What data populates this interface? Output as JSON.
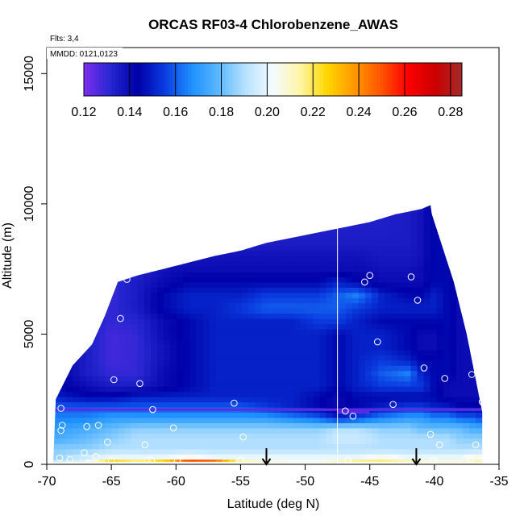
{
  "chart_data": {
    "type": "heatmap",
    "title": "ORCAS RF03-4 Chlorobenzene_AWAS",
    "xlabel": "Latitude (deg N)",
    "ylabel": "Altitude (m)",
    "xlim": [
      -70,
      -35
    ],
    "ylim": [
      0,
      16000
    ],
    "x_ticks": [
      -70,
      -65,
      -60,
      -55,
      -50,
      -45,
      -40,
      -35
    ],
    "x_tick_labels": [
      "-70",
      "-65",
      "-60",
      "-55",
      "-50",
      "-45",
      "-40",
      "-35"
    ],
    "y_ticks": [
      0,
      5000,
      10000,
      15000
    ],
    "y_tick_labels": [
      "0",
      "5000",
      "10000",
      "15000"
    ],
    "annotations": {
      "flights": "Flts: 3,4",
      "dates": "MMDD: 0121,0123"
    },
    "colorbar": {
      "range": [
        0.12,
        0.285
      ],
      "ticks": [
        0.12,
        0.14,
        0.16,
        0.18,
        0.2,
        0.22,
        0.24,
        0.26,
        0.28
      ],
      "tick_labels": [
        "0.12",
        "0.14",
        "0.16",
        "0.18",
        "0.20",
        "0.22",
        "0.24",
        "0.26",
        "0.28"
      ],
      "colors": [
        "#7f2ff0",
        "#2626d0",
        "#0000a8",
        "#0a3ce0",
        "#1e90ff",
        "#5cb8ff",
        "#b8e2ff",
        "#f4fbff",
        "#fff5a8",
        "#ffd700",
        "#ff9900",
        "#ff5500",
        "#ff0000",
        "#cc0000",
        "#a52a2a"
      ]
    },
    "boundary_top": [
      [
        -69.5,
        0
      ],
      [
        -69.3,
        2500
      ],
      [
        -68.0,
        3800
      ],
      [
        -66.5,
        4600
      ],
      [
        -65.5,
        5700
      ],
      [
        -64.5,
        7000
      ],
      [
        -63.0,
        7250
      ],
      [
        -61.0,
        7500
      ],
      [
        -59.0,
        7750
      ],
      [
        -57.0,
        8000
      ],
      [
        -55.0,
        8200
      ],
      [
        -53.0,
        8500
      ],
      [
        -51.0,
        8700
      ],
      [
        -49.0,
        8900
      ],
      [
        -47.0,
        9100
      ],
      [
        -45.0,
        9300
      ],
      [
        -43.0,
        9600
      ],
      [
        -41.0,
        9800
      ],
      [
        -40.3,
        9950
      ],
      [
        -40.2,
        9600
      ],
      [
        -38.5,
        7000
      ],
      [
        -37.5,
        5000
      ],
      [
        -36.7,
        3000
      ],
      [
        -36.3,
        2000
      ],
      [
        -36.3,
        0
      ]
    ],
    "field": {
      "x": [
        -69.5,
        -67,
        -65,
        -63,
        -61,
        -59,
        -57,
        -55,
        -53,
        -51,
        -49,
        -47.5,
        -46,
        -44,
        -42,
        -41,
        -40,
        -39,
        -38,
        -37,
        -36.3
      ],
      "y": [
        0,
        300,
        600,
        1000,
        1400,
        1800,
        2200,
        2600,
        3000,
        3500,
        4000,
        4500,
        5000,
        5500,
        6000,
        6500,
        7000,
        7500,
        8000,
        8500,
        9000,
        9500,
        10000
      ],
      "values": [
        [
          0.195,
          0.2,
          0.24,
          0.225,
          0.24,
          0.275,
          0.27,
          0.22,
          0.21,
          0.205,
          0.205,
          0.215,
          0.225,
          0.225,
          0.22,
          0.215,
          0.21,
          0.21,
          0.21,
          0.215,
          0.22
        ],
        [
          0.185,
          0.195,
          0.2,
          0.2,
          0.2,
          0.205,
          0.2,
          0.2,
          0.2,
          0.2,
          0.2,
          0.2,
          0.2,
          0.205,
          0.2,
          0.2,
          0.2,
          0.2,
          0.2,
          0.205,
          0.205
        ],
        [
          0.185,
          0.185,
          0.19,
          0.19,
          0.19,
          0.19,
          0.19,
          0.19,
          0.19,
          0.19,
          0.19,
          0.19,
          0.19,
          0.19,
          0.19,
          0.19,
          0.19,
          0.19,
          0.19,
          0.19,
          0.19
        ],
        [
          0.175,
          0.18,
          0.185,
          0.19,
          0.19,
          0.19,
          0.19,
          0.19,
          0.19,
          0.19,
          0.19,
          0.195,
          0.195,
          0.19,
          0.19,
          0.19,
          0.19,
          0.19,
          0.185,
          0.185,
          0.185
        ],
        [
          0.17,
          0.175,
          0.18,
          0.185,
          0.185,
          0.185,
          0.185,
          0.185,
          0.185,
          0.185,
          0.185,
          0.19,
          0.19,
          0.185,
          0.185,
          0.18,
          0.18,
          0.18,
          0.18,
          0.175,
          0.175
        ],
        [
          0.165,
          0.165,
          0.17,
          0.17,
          0.17,
          0.17,
          0.17,
          0.17,
          0.17,
          0.165,
          0.16,
          0.15,
          0.155,
          0.165,
          0.17,
          0.17,
          0.165,
          0.165,
          0.16,
          0.16,
          0.155
        ],
        [
          0.16,
          0.16,
          0.16,
          0.16,
          0.16,
          0.16,
          0.16,
          0.16,
          0.155,
          0.15,
          0.145,
          0.14,
          0.145,
          0.15,
          0.155,
          0.155,
          0.15,
          0.15,
          0.145,
          0.145,
          0.145
        ],
        [
          0.15,
          0.145,
          0.145,
          0.15,
          0.15,
          0.15,
          0.15,
          0.15,
          0.15,
          0.15,
          0.145,
          0.14,
          0.145,
          0.145,
          0.145,
          0.145,
          0.145,
          0.14,
          0.14,
          0.14,
          0.14
        ],
        [
          0.145,
          0.14,
          0.135,
          0.135,
          0.14,
          0.145,
          0.15,
          0.15,
          0.15,
          0.15,
          0.15,
          0.145,
          0.15,
          0.155,
          0.155,
          0.155,
          0.145,
          0.14,
          0.14,
          0.14,
          0.14
        ],
        [
          0.145,
          0.135,
          0.13,
          0.13,
          0.14,
          0.145,
          0.15,
          0.15,
          0.15,
          0.15,
          0.15,
          0.145,
          0.15,
          0.16,
          0.165,
          0.15,
          0.145,
          0.145,
          0.14,
          0.14,
          0.14
        ],
        [
          0.145,
          0.135,
          0.128,
          0.13,
          0.138,
          0.145,
          0.15,
          0.15,
          0.15,
          0.15,
          0.15,
          0.145,
          0.15,
          0.155,
          0.15,
          0.145,
          0.145,
          0.145,
          0.14,
          0.14,
          0.14
        ],
        [
          0.145,
          0.135,
          0.128,
          0.13,
          0.138,
          0.145,
          0.15,
          0.15,
          0.15,
          0.15,
          0.15,
          0.145,
          0.15,
          0.15,
          0.145,
          0.14,
          0.14,
          0.145,
          0.14,
          0.14,
          0.14
        ],
        [
          0.145,
          0.135,
          0.128,
          0.13,
          0.14,
          0.145,
          0.15,
          0.15,
          0.15,
          0.15,
          0.15,
          0.145,
          0.15,
          0.15,
          0.145,
          0.14,
          0.14,
          0.145,
          0.14,
          0.14,
          0.14
        ],
        [
          0.145,
          0.135,
          0.13,
          0.132,
          0.14,
          0.145,
          0.15,
          0.15,
          0.15,
          0.15,
          0.155,
          0.155,
          0.15,
          0.145,
          0.145,
          0.145,
          0.145,
          0.145,
          0.14,
          0.14,
          0.14
        ],
        [
          0.145,
          0.135,
          0.13,
          0.135,
          0.145,
          0.15,
          0.15,
          0.155,
          0.16,
          0.16,
          0.16,
          0.16,
          0.155,
          0.15,
          0.15,
          0.15,
          0.15,
          0.145,
          0.14,
          0.14,
          0.14
        ],
        [
          0.145,
          0.135,
          0.13,
          0.135,
          0.145,
          0.15,
          0.15,
          0.15,
          0.155,
          0.155,
          0.155,
          0.16,
          0.165,
          0.15,
          0.145,
          0.145,
          0.15,
          0.145,
          0.14,
          0.14,
          0.14
        ],
        [
          0.14,
          0.135,
          0.13,
          0.135,
          0.14,
          0.145,
          0.145,
          0.145,
          0.145,
          0.145,
          0.145,
          0.15,
          0.145,
          0.14,
          0.14,
          0.14,
          0.145,
          0.145,
          0.14,
          0.14,
          0.14
        ],
        [
          0.14,
          0.135,
          0.13,
          0.133,
          0.138,
          0.14,
          0.14,
          0.14,
          0.14,
          0.14,
          0.14,
          0.14,
          0.14,
          0.138,
          0.138,
          0.14,
          0.145,
          0.145,
          0.14,
          0.14,
          0.14
        ],
        [
          0.14,
          0.135,
          0.13,
          0.132,
          0.135,
          0.137,
          0.138,
          0.138,
          0.138,
          0.138,
          0.138,
          0.138,
          0.138,
          0.136,
          0.136,
          0.138,
          0.145,
          0.145,
          0.14,
          0.14,
          0.14
        ],
        [
          0.14,
          0.135,
          0.13,
          0.13,
          0.133,
          0.135,
          0.135,
          0.135,
          0.135,
          0.135,
          0.135,
          0.135,
          0.135,
          0.135,
          0.135,
          0.138,
          0.145,
          0.145,
          0.14,
          0.14,
          0.14
        ],
        [
          0.14,
          0.135,
          0.13,
          0.13,
          0.132,
          0.134,
          0.134,
          0.134,
          0.134,
          0.134,
          0.134,
          0.134,
          0.134,
          0.134,
          0.135,
          0.138,
          0.145,
          0.145,
          0.14,
          0.14,
          0.14
        ],
        [
          0.14,
          0.135,
          0.13,
          0.13,
          0.132,
          0.134,
          0.134,
          0.134,
          0.134,
          0.134,
          0.134,
          0.134,
          0.134,
          0.134,
          0.135,
          0.138,
          0.145,
          0.145,
          0.14,
          0.14,
          0.14
        ],
        [
          0.14,
          0.135,
          0.13,
          0.13,
          0.132,
          0.134,
          0.134,
          0.134,
          0.134,
          0.134,
          0.134,
          0.134,
          0.134,
          0.134,
          0.135,
          0.138,
          0.145,
          0.145,
          0.14,
          0.14,
          0.14
        ]
      ]
    },
    "bands": [
      {
        "x": [
          -69.5,
          -36.3
        ],
        "y": [
          2050,
          2150
        ],
        "value": 0.125
      },
      {
        "x": [
          -47.5,
          -45.0
        ],
        "y": [
          1950,
          2050
        ],
        "value": 0.125
      },
      {
        "x": [
          -69.5,
          -36.3
        ],
        "y": [
          0,
          100
        ],
        "value": 0.205
      }
    ],
    "vertical_line_x": -47.5,
    "samples": [
      {
        "x": -63.8,
        "y": 7100
      },
      {
        "x": -64.3,
        "y": 5600
      },
      {
        "x": -64.8,
        "y": 3250
      },
      {
        "x": -62.8,
        "y": 3100
      },
      {
        "x": -61.8,
        "y": 2100
      },
      {
        "x": -55.5,
        "y": 2350
      },
      {
        "x": -45.0,
        "y": 7250
      },
      {
        "x": -45.4,
        "y": 7000
      },
      {
        "x": -41.8,
        "y": 7200
      },
      {
        "x": -41.3,
        "y": 6300
      },
      {
        "x": -44.4,
        "y": 4700
      },
      {
        "x": -40.8,
        "y": 3700
      },
      {
        "x": -39.2,
        "y": 3300
      },
      {
        "x": -37.1,
        "y": 3450
      },
      {
        "x": -43.2,
        "y": 2300
      },
      {
        "x": -46.9,
        "y": 2050
      },
      {
        "x": -46.3,
        "y": 1850
      },
      {
        "x": -36.3,
        "y": 2400
      },
      {
        "x": -68.9,
        "y": 2150
      },
      {
        "x": -68.8,
        "y": 1500
      },
      {
        "x": -68.9,
        "y": 1300
      },
      {
        "x": -66.9,
        "y": 1450
      },
      {
        "x": -66.0,
        "y": 1500
      },
      {
        "x": -60.2,
        "y": 1400
      },
      {
        "x": -65.3,
        "y": 850
      },
      {
        "x": -62.4,
        "y": 750
      },
      {
        "x": -54.8,
        "y": 1050
      },
      {
        "x": -40.3,
        "y": 1150
      },
      {
        "x": -39.6,
        "y": 750
      },
      {
        "x": -36.8,
        "y": 750
      },
      {
        "x": -67.1,
        "y": 450
      },
      {
        "x": -66.2,
        "y": 300
      },
      {
        "x": -69.0,
        "y": 250
      },
      {
        "x": -68.2,
        "y": 180
      },
      {
        "x": -62.2,
        "y": 150
      },
      {
        "x": -61.9,
        "y": 150
      },
      {
        "x": -59.9,
        "y": 150
      },
      {
        "x": -55.0,
        "y": 150
      },
      {
        "x": -46.7,
        "y": 150
      },
      {
        "x": -40.1,
        "y": 150
      },
      {
        "x": -37.2,
        "y": 200
      },
      {
        "x": -65.0,
        "y": 150
      }
    ],
    "arrows_x": [
      -53.0,
      -41.4
    ],
    "colors": {
      "sample_outline": "#ffffff",
      "arrow": "#000000",
      "vertical_line": "#ffffff"
    }
  }
}
